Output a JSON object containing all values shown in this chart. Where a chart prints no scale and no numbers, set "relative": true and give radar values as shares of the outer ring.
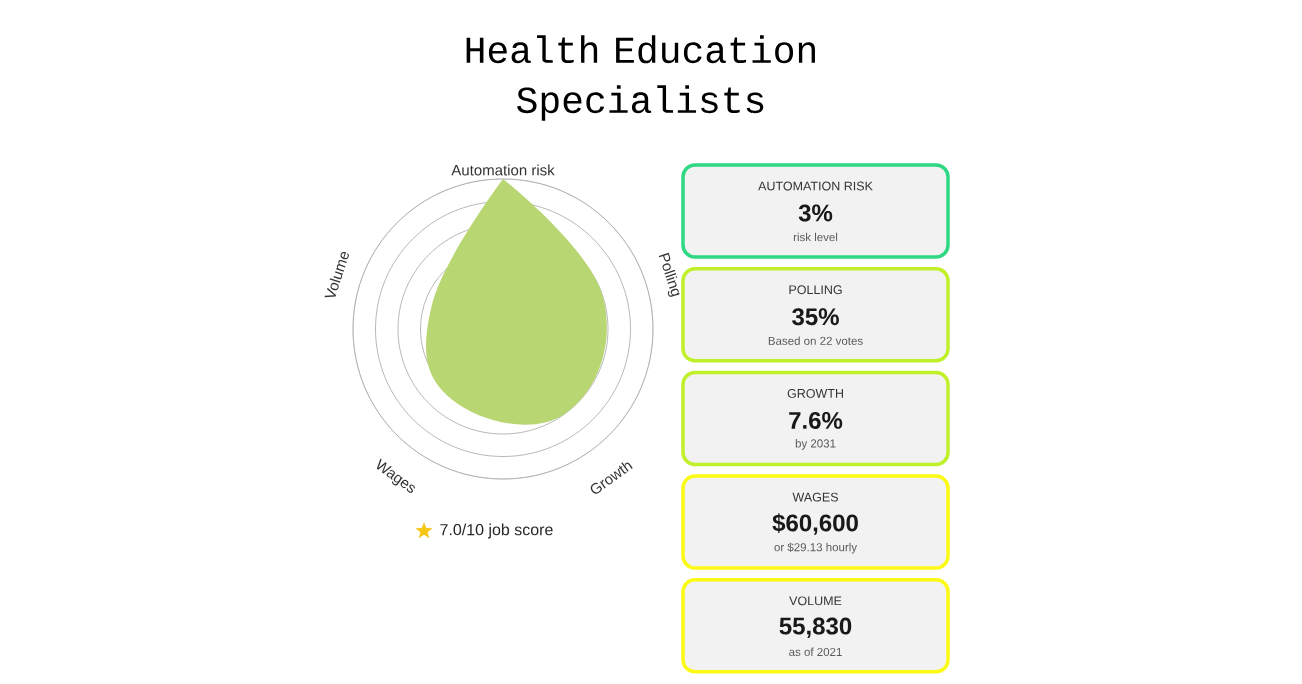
{
  "chart_data": [
    {
      "type": "radar",
      "title": "Health Education Specialists",
      "categories": [
        "Automation risk",
        "Polling",
        "Growth",
        "Wages",
        "Volume"
      ],
      "relative": true,
      "grid": true,
      "series": [
        {
          "color": "#b8d672",
          "values": [
            1.0,
            0.7,
            0.7,
            0.58,
            0.5
          ]
        }
      ],
      "annotations": [
        "7.0/10 job score"
      ]
    },
    {
      "type": "other",
      "annotations": [
        "AUTOMATION RISK",
        "3%",
        "risk level",
        "POLLING",
        "35%",
        "Based on 22 votes",
        "GROWTH",
        "7.6%",
        "by 2031",
        "WAGES",
        "$60,600",
        "or $29.13 hourly",
        "VOLUME",
        "55,830",
        "as of 2021"
      ],
      "colors": [
        "#2fd882",
        "#c0f02a",
        "#c0f02a",
        "#fafa14",
        "#fafa14"
      ]
    }
  ]
}
